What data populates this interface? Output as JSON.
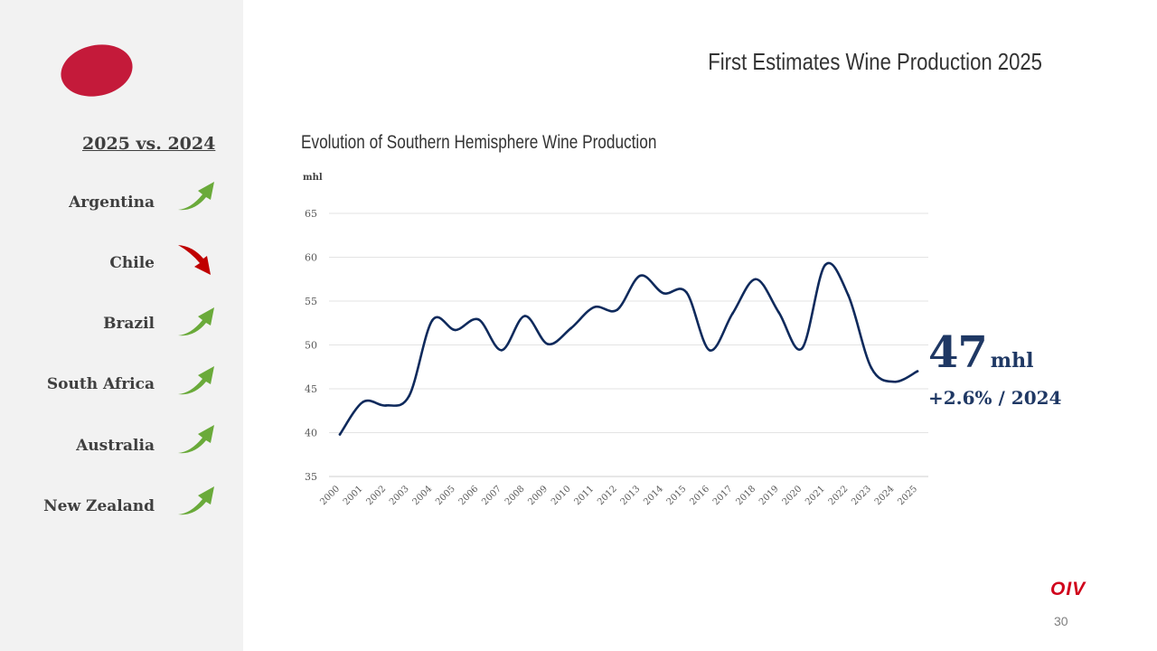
{
  "page": {
    "title": "First Estimates Wine Production 2025",
    "number": "30",
    "brand": "OIV"
  },
  "sidebar": {
    "title": "2025 vs. 2024",
    "countries": [
      {
        "name": "Argentina",
        "trend": "up"
      },
      {
        "name": "Chile",
        "trend": "down"
      },
      {
        "name": "Brazil",
        "trend": "up"
      },
      {
        "name": "South Africa",
        "trend": "up"
      },
      {
        "name": "Australia",
        "trend": "up"
      },
      {
        "name": "New Zealand",
        "trend": "up"
      }
    ]
  },
  "colors": {
    "up_arrow": "#6aaa3a",
    "down_arrow": "#c00000",
    "series": "#0f2a5c",
    "accent": "#c41a3a"
  },
  "highlight": {
    "value": "47",
    "unit": "mhl",
    "change": "+2.6% / 2024"
  },
  "chart_data": {
    "type": "line",
    "title": "Evolution of Southern Hemisphere Wine Production",
    "ylabel": "mhl",
    "xlabel": "",
    "ylim": [
      35,
      65
    ],
    "yticks": [
      35,
      40,
      45,
      50,
      55,
      60,
      65
    ],
    "grid": true,
    "categories": [
      "2000",
      "2001",
      "2002",
      "2003",
      "2004",
      "2005",
      "2006",
      "2007",
      "2008",
      "2009",
      "2010",
      "2011",
      "2012",
      "2013",
      "2014",
      "2015",
      "2016",
      "2017",
      "2018",
      "2019",
      "2020",
      "2021",
      "2022",
      "2023",
      "2024",
      "2025"
    ],
    "series": [
      {
        "name": "Southern Hemisphere wine production",
        "values": [
          39.8,
          43.5,
          43.1,
          44.2,
          52.8,
          51.7,
          52.9,
          49.4,
          53.3,
          50.1,
          51.9,
          54.3,
          54.0,
          57.9,
          55.9,
          56.0,
          49.4,
          53.6,
          57.5,
          53.7,
          49.6,
          59.1,
          55.7,
          47.4,
          45.8,
          47.0
        ]
      }
    ]
  }
}
